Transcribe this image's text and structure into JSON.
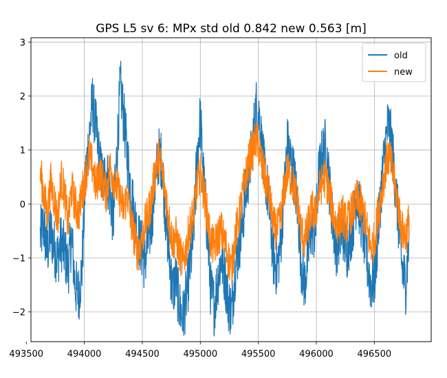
{
  "chart_data": {
    "type": "line",
    "title": "GPS L5 sv 6: MPx std old 0.842 new 0.563 [m]",
    "xlabel": "",
    "ylabel": "",
    "xlim": [
      493540,
      496990
    ],
    "ylim": [
      -2.55,
      3.08
    ],
    "xticks": [
      493500,
      494000,
      494500,
      495000,
      495500,
      496000,
      496500
    ],
    "xtick_labels": [
      "493500",
      "494000",
      "494500",
      "495000",
      "495500",
      "496000",
      "496500"
    ],
    "yticks": [
      -2,
      -1,
      0,
      1,
      2,
      3
    ],
    "ytick_labels": [
      "−2",
      "−1",
      "0",
      "1",
      "2",
      "3"
    ],
    "grid": true,
    "legend_position": "top-right",
    "colors": {
      "old": "#1f77b4",
      "new": "#ff7f0e"
    },
    "series": [
      {
        "name": "old",
        "x": [
          493620,
          493650,
          493680,
          493710,
          493740,
          493770,
          493800,
          493830,
          493860,
          493890,
          493920,
          493950,
          493980,
          494010,
          494040,
          494070,
          494100,
          494130,
          494160,
          494190,
          494220,
          494250,
          494280,
          494310,
          494340,
          494370,
          494400,
          494430,
          494460,
          494490,
          494520,
          494550,
          494580,
          494610,
          494640,
          494670,
          494700,
          494730,
          494760,
          494790,
          494820,
          494850,
          494880,
          494910,
          494940,
          494970,
          495000,
          495030,
          495060,
          495090,
          495120,
          495150,
          495180,
          495210,
          495240,
          495270,
          495300,
          495330,
          495360,
          495390,
          495420,
          495450,
          495480,
          495510,
          495540,
          495570,
          495600,
          495630,
          495660,
          495690,
          495720,
          495750,
          495780,
          495810,
          495840,
          495870,
          495900,
          495930,
          495960,
          495990,
          496020,
          496050,
          496080,
          496110,
          496140,
          496170,
          496200,
          496230,
          496260,
          496290,
          496320,
          496350,
          496380,
          496410,
          496440,
          496470,
          496500,
          496530,
          496560,
          496590,
          496620,
          496650,
          496680,
          496710,
          496740,
          496770,
          496800
        ],
        "values": [
          -0.6,
          -0.4,
          -0.9,
          -0.5,
          -0.8,
          -1.0,
          -0.7,
          -0.9,
          -1.2,
          -0.6,
          -1.5,
          -1.7,
          -1.2,
          0.5,
          1.2,
          1.9,
          1.4,
          0.8,
          0.4,
          0.6,
          0.2,
          -0.3,
          0.9,
          2.2,
          1.6,
          0.9,
          0.3,
          -0.2,
          -0.6,
          -0.8,
          -1.1,
          -0.7,
          -0.3,
          0.4,
          0.9,
          0.8,
          -0.2,
          -0.9,
          -1.6,
          -1.4,
          -1.9,
          -2.1,
          -1.7,
          -1.2,
          -0.6,
          0.8,
          1.6,
          0.4,
          -0.5,
          -1.6,
          -1.9,
          -1.4,
          -1.0,
          -1.3,
          -1.8,
          -2.0,
          -1.2,
          -0.8,
          -0.4,
          0.2,
          0.6,
          1.1,
          1.8,
          1.6,
          0.8,
          0.4,
          -0.2,
          -1.0,
          -1.2,
          -0.8,
          0.2,
          1.1,
          0.8,
          0.5,
          -0.1,
          -1.1,
          -1.5,
          -0.9,
          -0.4,
          -0.6,
          0.5,
          0.9,
          1.1,
          0.4,
          -0.3,
          -0.8,
          -0.6,
          -0.5,
          -0.9,
          -0.6,
          -0.3,
          0.2,
          -0.2,
          -0.6,
          -1.1,
          -1.5,
          -1.4,
          -0.6,
          0.3,
          1.0,
          1.5,
          1.1,
          0.4,
          -0.4,
          -1.2,
          -1.5,
          -0.6
        ]
      },
      {
        "name": "new",
        "x": [
          493620,
          493650,
          493680,
          493710,
          493740,
          493770,
          493800,
          493830,
          493860,
          493890,
          493920,
          493950,
          493980,
          494010,
          494040,
          494070,
          494100,
          494130,
          494160,
          494190,
          494220,
          494250,
          494280,
          494310,
          494340,
          494370,
          494400,
          494430,
          494460,
          494490,
          494520,
          494550,
          494580,
          494610,
          494640,
          494670,
          494700,
          494730,
          494760,
          494790,
          494820,
          494850,
          494880,
          494910,
          494940,
          494970,
          495000,
          495030,
          495060,
          495090,
          495120,
          495150,
          495180,
          495210,
          495240,
          495270,
          495300,
          495330,
          495360,
          495390,
          495420,
          495450,
          495480,
          495510,
          495540,
          495570,
          495600,
          495630,
          495660,
          495690,
          495720,
          495750,
          495780,
          495810,
          495840,
          495870,
          495900,
          495930,
          495960,
          495990,
          496020,
          496050,
          496080,
          496110,
          496140,
          496170,
          496200,
          496230,
          496260,
          496290,
          496320,
          496350,
          496380,
          496410,
          496440,
          496470,
          496500,
          496530,
          496560,
          496590,
          496620,
          496650,
          496680,
          496710,
          496740,
          496770,
          496800
        ],
        "values": [
          0.6,
          0.2,
          -0.2,
          0.4,
          0.1,
          -0.3,
          0.5,
          0.2,
          -0.4,
          0.3,
          0.0,
          -0.2,
          0.2,
          0.5,
          0.9,
          0.7,
          0.3,
          0.6,
          0.4,
          0.2,
          0.7,
          0.5,
          0.3,
          0.1,
          -0.1,
          0.2,
          -0.3,
          -0.6,
          -0.9,
          -0.7,
          -0.4,
          -0.2,
          0.1,
          0.6,
          0.9,
          0.6,
          0.2,
          -0.3,
          -0.7,
          -0.6,
          -0.9,
          -1.1,
          -0.8,
          -0.4,
          -0.2,
          0.3,
          0.6,
          0.2,
          -0.2,
          -0.7,
          -0.8,
          -0.6,
          -0.5,
          -0.7,
          -1.0,
          -1.2,
          -0.6,
          -0.3,
          0.1,
          0.5,
          0.8,
          1.0,
          1.2,
          1.0,
          0.6,
          0.4,
          0.1,
          -0.4,
          -0.5,
          -0.3,
          0.2,
          0.6,
          0.5,
          0.3,
          0.0,
          -0.5,
          -0.7,
          -0.4,
          -0.1,
          -0.2,
          0.2,
          0.4,
          0.5,
          0.2,
          -0.1,
          -0.4,
          -0.3,
          -0.2,
          -0.4,
          -0.2,
          -0.1,
          0.1,
          0.0,
          -0.2,
          -0.5,
          -0.8,
          -0.7,
          -0.2,
          0.2,
          0.6,
          0.9,
          0.7,
          0.3,
          -0.1,
          -0.5,
          -0.6,
          -0.3
        ]
      }
    ]
  }
}
